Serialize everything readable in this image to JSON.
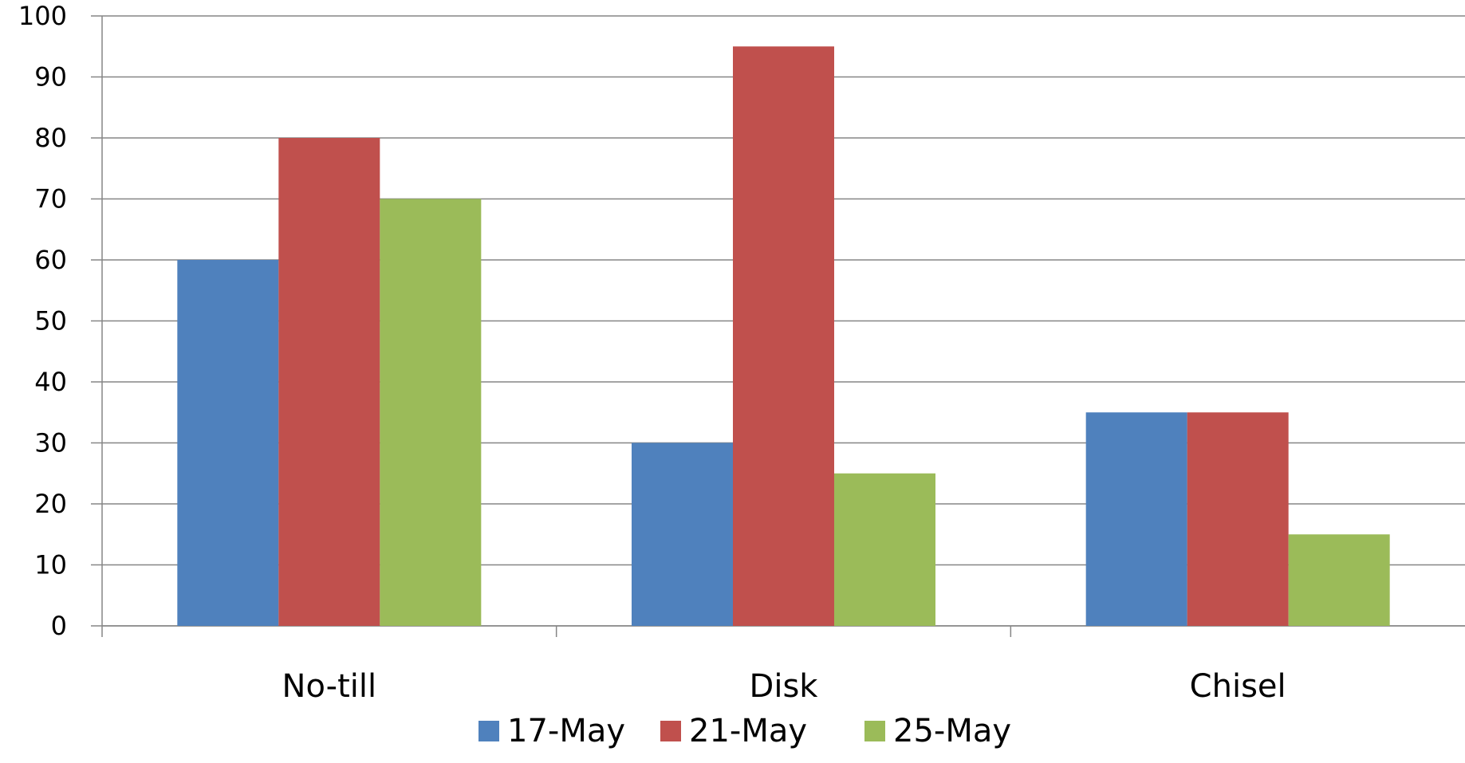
{
  "chart_data": {
    "type": "bar",
    "title": "",
    "xlabel": "",
    "ylabel": "",
    "categories": [
      "No-till",
      "Disk",
      "Chisel"
    ],
    "series": [
      {
        "name": "17-May",
        "values": [
          60,
          30,
          35
        ],
        "color": "#4F81BD"
      },
      {
        "name": "21-May",
        "values": [
          80,
          95,
          35
        ],
        "color": "#C0504D"
      },
      {
        "name": "25-May",
        "values": [
          70,
          25,
          15
        ],
        "color": "#9BBB59"
      }
    ],
    "ylim": [
      0,
      100
    ],
    "yticks": [
      "0",
      "10",
      "20",
      "30",
      "40",
      "50",
      "60",
      "70",
      "80",
      "90",
      "100"
    ],
    "grid": true,
    "legend_position": "bottom",
    "gridline_color": "#868686",
    "axis_color": "#868686"
  }
}
